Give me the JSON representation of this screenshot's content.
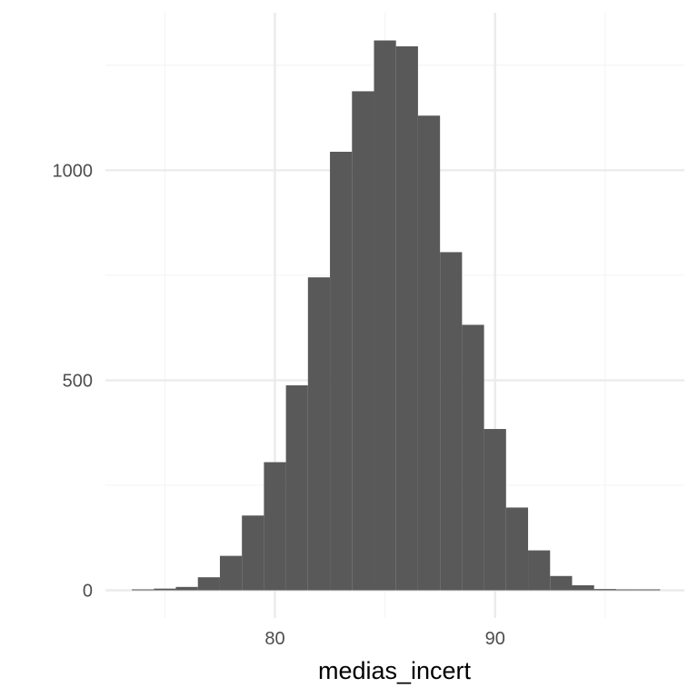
{
  "chart_data": {
    "type": "bar",
    "subtype": "histogram",
    "title": "",
    "xlabel": "medias_incert",
    "ylabel": "",
    "bin_width": 1,
    "bins": [
      {
        "x0": 73.5,
        "x1": 74.5,
        "count": 1
      },
      {
        "x0": 74.5,
        "x1": 75.5,
        "count": 4
      },
      {
        "x0": 75.5,
        "x1": 76.5,
        "count": 8
      },
      {
        "x0": 76.5,
        "x1": 77.5,
        "count": 31
      },
      {
        "x0": 77.5,
        "x1": 78.5,
        "count": 82
      },
      {
        "x0": 78.5,
        "x1": 79.5,
        "count": 178
      },
      {
        "x0": 79.5,
        "x1": 80.5,
        "count": 305
      },
      {
        "x0": 80.5,
        "x1": 81.5,
        "count": 488
      },
      {
        "x0": 81.5,
        "x1": 82.5,
        "count": 745
      },
      {
        "x0": 82.5,
        "x1": 83.5,
        "count": 1044
      },
      {
        "x0": 83.5,
        "x1": 84.5,
        "count": 1188
      },
      {
        "x0": 84.5,
        "x1": 85.5,
        "count": 1309
      },
      {
        "x0": 85.5,
        "x1": 86.5,
        "count": 1295
      },
      {
        "x0": 86.5,
        "x1": 87.5,
        "count": 1130
      },
      {
        "x0": 87.5,
        "x1": 88.5,
        "count": 805
      },
      {
        "x0": 88.5,
        "x1": 89.5,
        "count": 632
      },
      {
        "x0": 89.5,
        "x1": 90.5,
        "count": 384
      },
      {
        "x0": 90.5,
        "x1": 91.5,
        "count": 197
      },
      {
        "x0": 91.5,
        "x1": 92.5,
        "count": 95
      },
      {
        "x0": 92.5,
        "x1": 93.5,
        "count": 34
      },
      {
        "x0": 93.5,
        "x1": 94.5,
        "count": 12
      },
      {
        "x0": 94.5,
        "x1": 95.5,
        "count": 3
      },
      {
        "x0": 95.5,
        "x1": 96.5,
        "count": 1
      },
      {
        "x0": 96.5,
        "x1": 97.5,
        "count": 1
      }
    ],
    "xlim": [
      72.3,
      98.6
    ],
    "ylim": [
      -66,
      1375
    ],
    "x_ticks": [
      80,
      90
    ],
    "x_tick_labels": [
      "80",
      "90"
    ],
    "x_minor_ticks": [
      75,
      85,
      95
    ],
    "y_ticks": [
      0,
      500,
      1000
    ],
    "y_tick_labels": [
      "0",
      "500",
      "1000"
    ],
    "y_minor_ticks": [
      250,
      750,
      1250
    ],
    "grid": true,
    "legend": "none",
    "colors": {
      "bar": "#595959",
      "grid_major": "#ebebeb",
      "grid_minor": "#f5f5f5",
      "tick_text": "#4d4d4d",
      "title_text": "#000000"
    }
  }
}
